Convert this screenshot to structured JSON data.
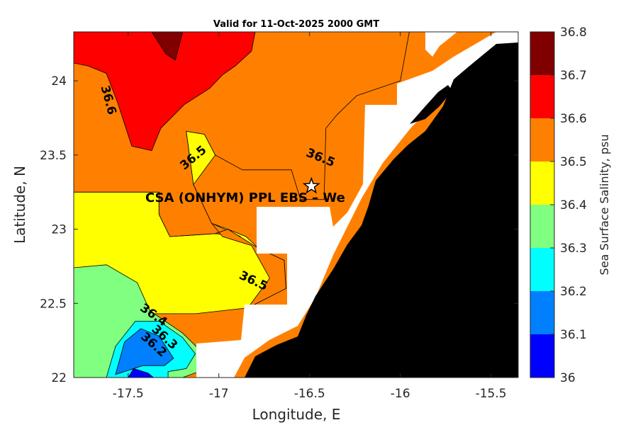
{
  "title": "Valid for 11-Oct-2025 2000 GMT",
  "colors": {
    "land": "#000000",
    "nodata": "#ffffff",
    "marker_fill": "#ffffff",
    "marker_stroke": "#000000"
  },
  "site_label": "CSA (ONHYM) PPL EBS  – We",
  "chart_data": {
    "type": "heatmap",
    "subtype": "filled-contour-map",
    "xlabel": "Longitude, E",
    "ylabel": "Latitude, N",
    "xlim": [
      -17.8,
      -15.35
    ],
    "ylim": [
      22.0,
      24.33
    ],
    "xticks": [
      -17.5,
      -17,
      -16.5,
      -16,
      -15.5
    ],
    "xtick_labels": [
      "-17.5",
      "-17",
      "-16.5",
      "-16",
      "-15.5"
    ],
    "yticks": [
      22,
      22.5,
      23,
      23.5,
      24
    ],
    "ytick_labels": [
      "22",
      "22.5",
      "23",
      "23.5",
      "24"
    ],
    "colorbar": {
      "label": "Sea Surface Salinity, psu",
      "levels": [
        36.0,
        36.1,
        36.2,
        36.3,
        36.4,
        36.5,
        36.6,
        36.7,
        36.8
      ],
      "tick_labels": [
        "36",
        "36.1",
        "36.2",
        "36.3",
        "36.4",
        "36.5",
        "36.6",
        "36.7",
        "36.8"
      ],
      "colors": [
        "#0000ff",
        "#0080ff",
        "#00ffff",
        "#80ff80",
        "#ffff00",
        "#ff8000",
        "#ff0000",
        "#800000"
      ]
    },
    "contour_labels": [
      {
        "text": "36.6",
        "value": 36.6,
        "lon": -17.61,
        "lat": 23.87,
        "angle": 75
      },
      {
        "text": "36.5",
        "value": 36.5,
        "lon": -17.14,
        "lat": 23.48,
        "angle": -40
      },
      {
        "text": "36.5",
        "value": 36.5,
        "lon": -16.44,
        "lat": 23.48,
        "angle": 22
      },
      {
        "text": "36.5",
        "value": 36.5,
        "lon": -16.81,
        "lat": 22.65,
        "angle": 25
      },
      {
        "text": "36.4",
        "value": 36.4,
        "lon": -17.36,
        "lat": 22.42,
        "angle": 35
      },
      {
        "text": "36.3",
        "value": 36.3,
        "lon": -17.3,
        "lat": 22.27,
        "angle": 42
      },
      {
        "text": "36.2",
        "value": 36.2,
        "lon": -17.36,
        "lat": 22.22,
        "angle": 42
      }
    ],
    "site": {
      "lon": -16.49,
      "lat": 23.29
    },
    "regions": [
      {
        "value_band": "36.4-36.5",
        "color": "#ffff00",
        "polygon": [
          [
            -17.8,
            22.0
          ],
          [
            -17.8,
            22.43
          ],
          [
            -17.13,
            22.43
          ],
          [
            -16.84,
            22.47
          ],
          [
            -16.63,
            22.6
          ],
          [
            -16.64,
            22.79
          ],
          [
            -16.78,
            22.87
          ],
          [
            -16.85,
            22.95
          ],
          [
            -16.95,
            23.0
          ],
          [
            -17.04,
            23.04
          ],
          [
            -17.14,
            23.3
          ],
          [
            -17.18,
            23.66
          ],
          [
            -17.08,
            23.64
          ],
          [
            -17.02,
            23.5
          ],
          [
            -17.14,
            23.3
          ],
          [
            -17.04,
            23.04
          ],
          [
            -16.88,
            22.95
          ],
          [
            -17.02,
            22.97
          ],
          [
            -17.27,
            22.95
          ],
          [
            -17.33,
            23.1
          ],
          [
            -17.33,
            23.25
          ],
          [
            -17.8,
            23.25
          ],
          [
            -17.8,
            22.0
          ],
          [
            -17.8,
            22.0
          ]
        ]
      },
      {
        "value_band": "36.3-36.4",
        "color": "#80ff80",
        "polygon": [
          [
            -17.8,
            22.0
          ],
          [
            -17.8,
            22.74
          ],
          [
            -17.62,
            22.76
          ],
          [
            -17.45,
            22.64
          ],
          [
            -17.38,
            22.45
          ],
          [
            -17.2,
            22.3
          ],
          [
            -17.1,
            22.18
          ],
          [
            -17.11,
            22.04
          ],
          [
            -17.2,
            22.0
          ]
        ]
      },
      {
        "value_band": "36.2-36.3",
        "color": "#00ffff",
        "polygon": [
          [
            -17.62,
            22.0
          ],
          [
            -17.57,
            22.21
          ],
          [
            -17.46,
            22.38
          ],
          [
            -17.33,
            22.38
          ],
          [
            -17.2,
            22.27
          ],
          [
            -17.13,
            22.16
          ],
          [
            -17.18,
            22.06
          ],
          [
            -17.28,
            22.04
          ],
          [
            -17.28,
            22.0
          ]
        ]
      },
      {
        "value_band": "36.1-36.2",
        "color": "#0080ff",
        "polygon": [
          [
            -17.57,
            22.02
          ],
          [
            -17.52,
            22.24
          ],
          [
            -17.43,
            22.33
          ],
          [
            -17.33,
            22.28
          ],
          [
            -17.25,
            22.13
          ],
          [
            -17.3,
            22.08
          ],
          [
            -17.42,
            22.08
          ],
          [
            -17.57,
            22.02
          ]
        ]
      },
      {
        "value_band": "36.0-36.1",
        "color": "#0000ff",
        "polygon": [
          [
            -17.5,
            22.0
          ],
          [
            -17.47,
            22.06
          ],
          [
            -17.39,
            22.03
          ],
          [
            -17.36,
            22.0
          ]
        ]
      },
      {
        "value_band": "36.5-36.6",
        "color": "#ff8000",
        "polygon": [
          [
            -17.8,
            23.25
          ],
          [
            -17.33,
            23.25
          ],
          [
            -17.33,
            23.1
          ],
          [
            -17.27,
            22.95
          ],
          [
            -17.02,
            22.97
          ],
          [
            -16.95,
            23.0
          ],
          [
            -16.78,
            22.87
          ],
          [
            -16.64,
            22.79
          ],
          [
            -16.63,
            22.6
          ],
          [
            -16.84,
            22.47
          ],
          [
            -16.72,
            22.67
          ],
          [
            -16.82,
            22.89
          ],
          [
            -16.98,
            22.95
          ],
          [
            -17.04,
            23.04
          ],
          [
            -17.14,
            23.3
          ],
          [
            -17.18,
            23.66
          ],
          [
            -17.08,
            23.64
          ],
          [
            -17.02,
            23.5
          ],
          [
            -16.87,
            23.4
          ],
          [
            -16.6,
            23.4
          ],
          [
            -16.55,
            23.2
          ],
          [
            -16.42,
            23.2
          ],
          [
            -16.41,
            23.68
          ],
          [
            -16.35,
            23.77
          ],
          [
            -16.24,
            23.9
          ],
          [
            -16.0,
            24.0
          ],
          [
            -15.95,
            24.33
          ],
          [
            -17.8,
            24.33
          ]
        ]
      },
      {
        "value_band": "36.6-36.7",
        "color": "#ff0000",
        "polygon": [
          [
            -17.8,
            24.33
          ],
          [
            -17.8,
            24.12
          ],
          [
            -17.72,
            24.1
          ],
          [
            -17.62,
            24.05
          ],
          [
            -17.56,
            23.86
          ],
          [
            -17.48,
            23.56
          ],
          [
            -17.37,
            23.53
          ],
          [
            -17.32,
            23.68
          ],
          [
            -17.19,
            23.84
          ],
          [
            -17.05,
            23.95
          ],
          [
            -16.98,
            24.04
          ],
          [
            -16.91,
            24.1
          ],
          [
            -16.82,
            24.2
          ],
          [
            -16.8,
            24.33
          ]
        ]
      },
      {
        "value_band": "36.7-36.8",
        "color": "#800000",
        "polygon": [
          [
            -17.37,
            24.33
          ],
          [
            -17.29,
            24.18
          ],
          [
            -17.24,
            24.14
          ],
          [
            -17.2,
            24.33
          ]
        ]
      }
    ]
  }
}
